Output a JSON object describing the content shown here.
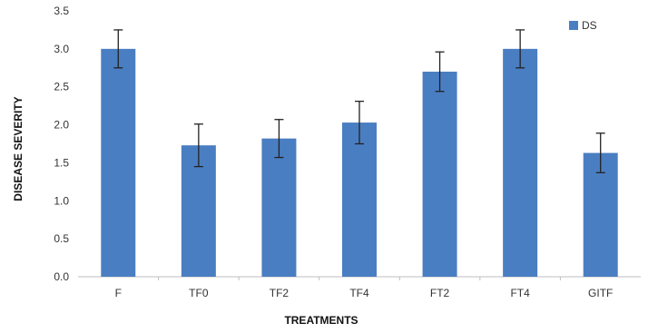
{
  "chart_data": {
    "type": "bar",
    "categories": [
      "F",
      "TF0",
      "TF2",
      "TF4",
      "FT2",
      "FT4",
      "GITF"
    ],
    "series": [
      {
        "name": "DS",
        "values": [
          3.0,
          1.73,
          1.82,
          2.03,
          2.7,
          3.0,
          1.63
        ],
        "error": [
          0.25,
          0.28,
          0.25,
          0.28,
          0.26,
          0.25,
          0.26
        ]
      }
    ],
    "xlabel": "TREATMENTS",
    "ylabel": "DISEASE SEVERITY",
    "ylim": [
      0,
      3.5
    ],
    "yticks": [
      "0.0",
      "0.5",
      "1.0",
      "1.5",
      "2.0",
      "2.5",
      "3.0",
      "3.5"
    ],
    "grid": false,
    "legend_position": "top-right",
    "colors": {
      "bar": "#4a7ec2",
      "error_bar": "#222222",
      "axis": "#bfbfbf"
    }
  }
}
